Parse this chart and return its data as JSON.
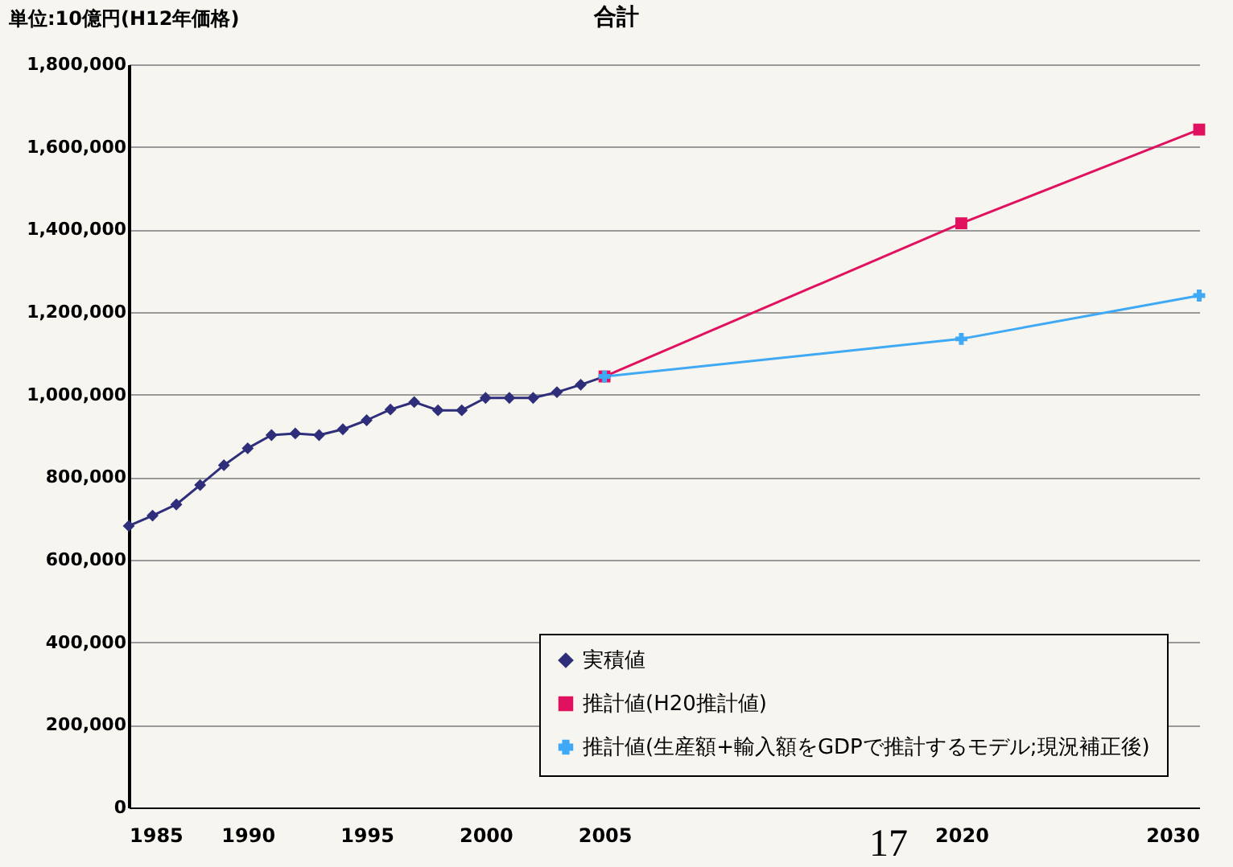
{
  "chart_data": {
    "type": "line",
    "title": "合計",
    "ylabel": "単位:10億円(H12年価格)",
    "xlim": [
      1985,
      2030
    ],
    "xticks": [
      1985,
      1990,
      1995,
      2000,
      2005,
      2020,
      2030
    ],
    "ylim": [
      0,
      1800000
    ],
    "yticks": [
      0,
      {
        "value": 200000,
        "label": "200,000"
      },
      {
        "value": 400000,
        "label": "400,000"
      },
      {
        "value": 600000,
        "label": "600,000"
      },
      {
        "value": 800000,
        "label": "800,000"
      },
      {
        "value": 1000000,
        "label": "1,000,000"
      },
      {
        "value": 1200000,
        "label": "1,200,000"
      },
      {
        "value": 1400000,
        "label": "1,400,000"
      },
      {
        "value": 1600000,
        "label": "1,600,000"
      },
      {
        "value": 1800000,
        "label": "1,800,000"
      }
    ],
    "grid": "y",
    "legend": "bottom right",
    "series": [
      {
        "name": "実積値",
        "color": "#2e2e7a",
        "marker": "diamond",
        "x": [
          1985,
          1986,
          1987,
          1988,
          1989,
          1990,
          1991,
          1992,
          1993,
          1994,
          1995,
          1996,
          1997,
          1998,
          1999,
          2000,
          2001,
          2002,
          2003,
          2004,
          2005
        ],
        "values": [
          682000,
          707000,
          734000,
          781000,
          829000,
          870000,
          902000,
          906000,
          902000,
          916000,
          938000,
          964000,
          982000,
          962000,
          962000,
          992000,
          992000,
          992000,
          1006000,
          1024000,
          1044000
        ]
      },
      {
        "name": "推計値(H20推計値)",
        "color": "#e0115f",
        "marker": "square",
        "x": [
          2005,
          2020,
          2030
        ],
        "values": [
          1044000,
          1415000,
          1642000
        ]
      },
      {
        "name": "推計値(生産額+輸入額をGDPで推計するモデル;現況補正後)",
        "color": "#3fa9f5",
        "marker": "cross",
        "x": [
          2005,
          2020,
          2030
        ],
        "values": [
          1044000,
          1135000,
          1240000
        ]
      }
    ],
    "annotations": [
      "17"
    ]
  }
}
